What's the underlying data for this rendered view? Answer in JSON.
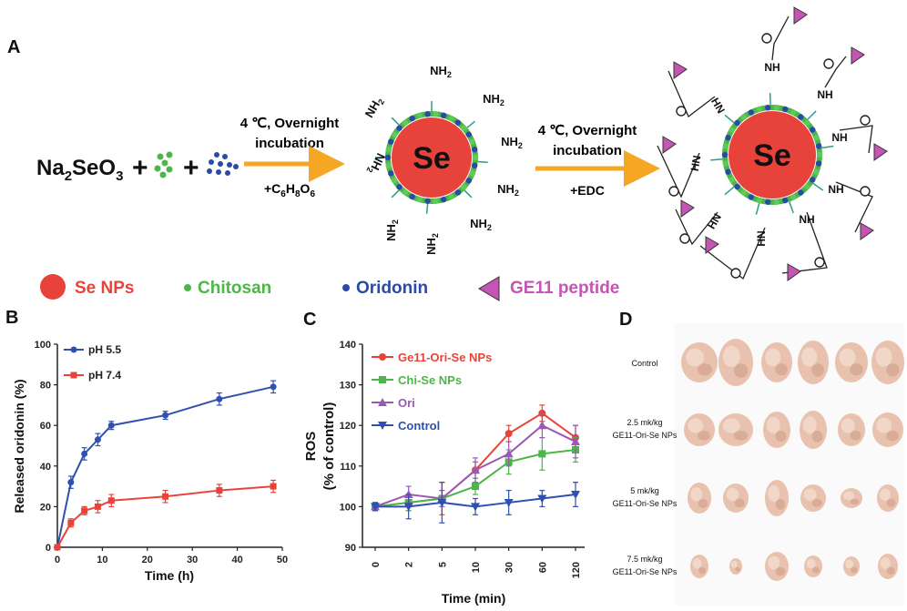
{
  "panelA": {
    "letter": "A",
    "reactant": {
      "base": "Na",
      "sub1": "2",
      "mid": "SeO",
      "sub2": "3"
    },
    "plus": "+",
    "step1": {
      "line1": "4 ℃, Overnight",
      "line2": "incubation",
      "reagent_base": "+C",
      "reagent_parts": [
        "6",
        "H",
        "8",
        "O",
        "6"
      ]
    },
    "step2": {
      "line1": "4 ℃, Overnight",
      "line2": "incubation",
      "reagent": "+EDC"
    },
    "core_label": "Se",
    "nh2": {
      "base": "NH",
      "sub": "2"
    },
    "nh": "NH",
    "hn": "HN",
    "o": "O",
    "legend": [
      {
        "label": "Se NPs",
        "color": "#e8433a"
      },
      {
        "label": "Chitosan",
        "color": "#4cb648"
      },
      {
        "label": "Oridonin",
        "color": "#2a4aa8"
      },
      {
        "label": "GE11 peptide",
        "color": "#c455b4"
      }
    ]
  },
  "panelB": {
    "letter": "B"
  },
  "panelC": {
    "letter": "C"
  },
  "panelD": {
    "letter": "D",
    "rows": [
      {
        "label1": "Control",
        "label2": ""
      },
      {
        "label1": "2.5 mk/kg",
        "label2": "GE11-Ori-Se NPs"
      },
      {
        "label1": "5 mk/kg",
        "label2": "GE11-Ori-Se NPs"
      },
      {
        "label1": "7.5 mk/kg",
        "label2": "GE11-Ori-Se NPs"
      }
    ]
  },
  "chart_data": [
    {
      "type": "line",
      "panel": "B",
      "xlabel": "Time (h)",
      "ylabel": "Released oridonin (%)",
      "xlim": [
        0,
        50
      ],
      "ylim": [
        0,
        100
      ],
      "xticks": [
        "0",
        "10",
        "20",
        "30",
        "40",
        "50"
      ],
      "yticks": [
        "0",
        "20",
        "40",
        "60",
        "80",
        "100"
      ],
      "x": [
        0,
        3,
        6,
        9,
        12,
        24,
        36,
        48
      ],
      "series": [
        {
          "name": "pH 5.5",
          "color": "#3050b0",
          "values": [
            0,
            32,
            46,
            53,
            60,
            65,
            73,
            79
          ],
          "errors": [
            0,
            3,
            3,
            3,
            2,
            2,
            3,
            3
          ]
        },
        {
          "name": "pH 7.4",
          "color": "#e8433a",
          "values": [
            0,
            12,
            18,
            20,
            23,
            25,
            28,
            30
          ],
          "errors": [
            0,
            2,
            2,
            3,
            3,
            3,
            3,
            3
          ]
        }
      ]
    },
    {
      "type": "line",
      "panel": "C",
      "xlabel": "Time (min)",
      "ylabel_line1": "ROS",
      "ylabel_line2": "(% of control)",
      "ylim": [
        90,
        140
      ],
      "categories": [
        "0",
        "2",
        "5",
        "10",
        "30",
        "60",
        "120"
      ],
      "yticks": [
        "90",
        "100",
        "110",
        "120",
        "130",
        "140"
      ],
      "series": [
        {
          "name": "Ge11-Ori-Se NPs",
          "color": "#e8433a",
          "marker": "circle",
          "values": [
            100,
            101,
            102,
            109,
            118,
            123,
            117
          ],
          "errors": [
            1,
            2,
            4,
            2,
            2,
            2,
            3
          ]
        },
        {
          "name": "Chi-Se NPs",
          "color": "#4cb648",
          "marker": "square",
          "values": [
            100,
            101,
            102,
            105,
            111,
            113,
            114
          ],
          "errors": [
            1,
            2,
            2,
            2,
            3,
            4,
            3
          ]
        },
        {
          "name": "Ori",
          "color": "#9b59b6",
          "marker": "triangle-up",
          "values": [
            100,
            103,
            102,
            109,
            113,
            120,
            116
          ],
          "errors": [
            1,
            2,
            2,
            3,
            3,
            3,
            4
          ]
        },
        {
          "name": "Control",
          "color": "#3050b0",
          "marker": "triangle-down",
          "values": [
            100,
            100,
            101,
            100,
            101,
            102,
            103
          ],
          "errors": [
            1,
            3,
            5,
            2,
            3,
            2,
            3
          ]
        }
      ]
    }
  ]
}
